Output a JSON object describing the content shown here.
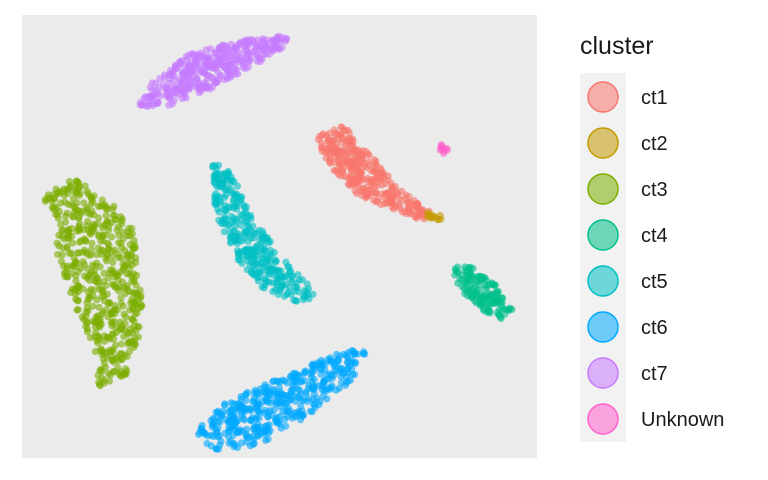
{
  "chart_data": {
    "type": "scatter",
    "title": "",
    "xlabel": "",
    "ylabel": "",
    "xlim": [
      0,
      100
    ],
    "ylim": [
      0,
      100
    ],
    "grid": false,
    "axes_shown": false,
    "panel_background": "#ebebeb",
    "point_alpha": 0.6,
    "legend": {
      "title": "cluster",
      "position": "right"
    },
    "series": [
      {
        "name": "ct1",
        "color": "#F8766D",
        "cloud": {
          "polygon": [
            [
              57,
              72.5
            ],
            [
              62.5,
              75
            ],
            [
              68,
              68
            ],
            [
              73,
              61
            ],
            [
              80,
              55
            ],
            [
              78,
              53.5
            ],
            [
              71,
              56.5
            ],
            [
              65,
              59.5
            ],
            [
              60,
              65
            ]
          ],
          "n": 320
        }
      },
      {
        "name": "ct2",
        "color": "#C49A00",
        "cloud": {
          "polygon": [
            [
              78.5,
              55.5
            ],
            [
              81,
              55
            ],
            [
              82,
              54.5
            ],
            [
              81,
              53.5
            ],
            [
              78.5,
              54.5
            ]
          ],
          "n": 12
        }
      },
      {
        "name": "ct3",
        "color": "#7CAE00",
        "cloud": {
          "polygon": [
            [
              4,
              59
            ],
            [
              10,
              63
            ],
            [
              15,
              60
            ],
            [
              21,
              54
            ],
            [
              23,
              43
            ],
            [
              23.5,
              30
            ],
            [
              20,
              18
            ],
            [
              15,
              16
            ],
            [
              14,
              25
            ],
            [
              10,
              35
            ],
            [
              7,
              45
            ],
            [
              6,
              54
            ]
          ],
          "n": 520
        }
      },
      {
        "name": "ct4",
        "color": "#00C08B",
        "cloud": {
          "polygon": [
            [
              84,
              43
            ],
            [
              87,
              43.5
            ],
            [
              92,
              39
            ],
            [
              95.5,
              33
            ],
            [
              93,
              31
            ],
            [
              88,
              34
            ],
            [
              84,
              39
            ]
          ],
          "n": 140
        }
      },
      {
        "name": "ct5",
        "color": "#00BFC4",
        "cloud": {
          "polygon": [
            [
              37,
              66
            ],
            [
              40.5,
              66.5
            ],
            [
              44,
              56
            ],
            [
              50,
              46
            ],
            [
              55,
              40
            ],
            [
              57,
              36
            ],
            [
              53,
              35
            ],
            [
              47,
              38
            ],
            [
              41,
              46
            ],
            [
              38,
              54
            ],
            [
              37,
              60
            ]
          ],
          "n": 320
        }
      },
      {
        "name": "ct6",
        "color": "#00A9FF",
        "cloud": {
          "polygon": [
            [
              34.5,
              7
            ],
            [
              34,
              4
            ],
            [
              38,
              1.5
            ],
            [
              46,
              3
            ],
            [
              56,
              10
            ],
            [
              64,
              17.5
            ],
            [
              67.5,
              25
            ],
            [
              64,
              25
            ],
            [
              56,
              21
            ],
            [
              48,
              17
            ],
            [
              40,
              13
            ]
          ],
          "n": 420
        }
      },
      {
        "name": "ct7",
        "color": "#C77CFF",
        "cloud": {
          "polygon": [
            [
              22.5,
              79.5
            ],
            [
              25,
              84.5
            ],
            [
              32,
              91
            ],
            [
              40,
              94
            ],
            [
              50,
              95.5
            ],
            [
              52.5,
              94.5
            ],
            [
              49,
              91
            ],
            [
              44,
              88
            ],
            [
              36,
              83
            ],
            [
              28,
              79
            ]
          ],
          "n": 380
        }
      },
      {
        "name": "Unknown",
        "color": "#FF61CC",
        "cloud": {
          "polygon": [
            [
              81,
              71
            ],
            [
              82,
              71
            ],
            [
              83,
              69
            ],
            [
              82,
              68.5
            ],
            [
              81,
              69.5
            ]
          ],
          "n": 10
        }
      }
    ]
  }
}
